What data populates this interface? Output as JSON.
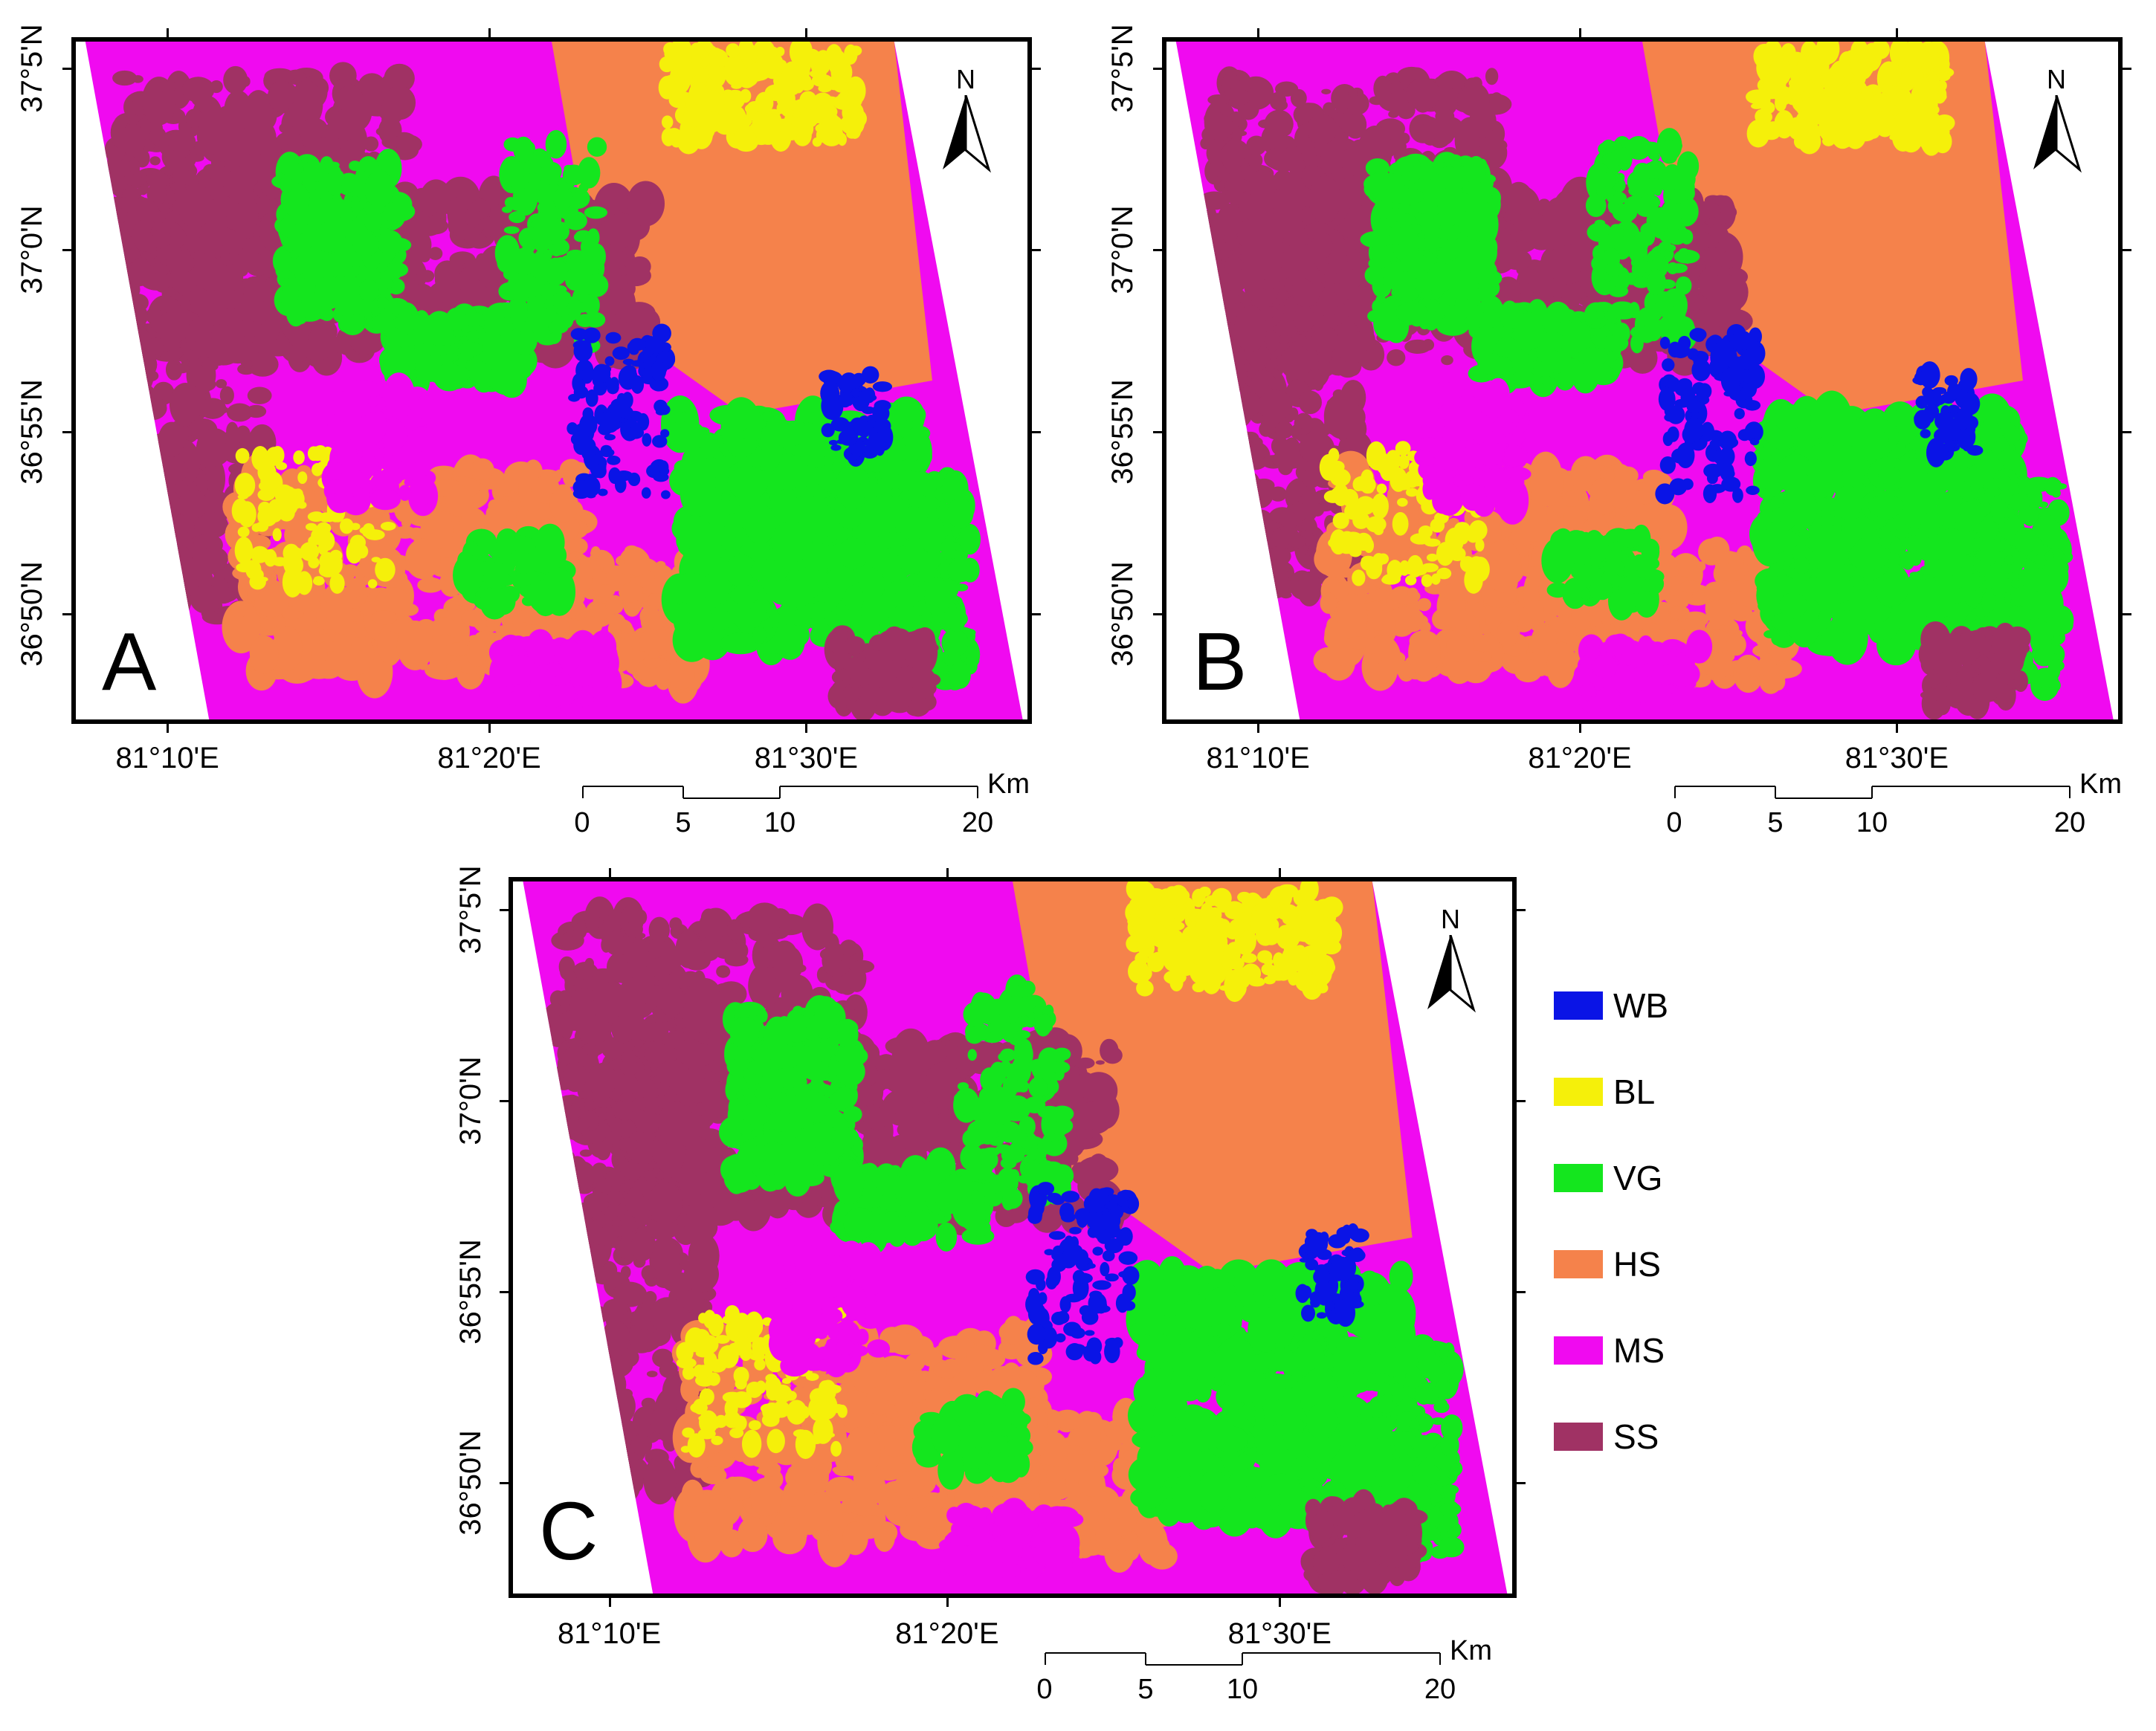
{
  "panels": [
    {
      "id": "A",
      "letter": "A"
    },
    {
      "id": "B",
      "letter": "B"
    },
    {
      "id": "C",
      "letter": "C"
    }
  ],
  "lat_labels": [
    "37°5'N",
    "37°0'N",
    "36°55'N",
    "36°50'N"
  ],
  "lon_labels": [
    "81°10'E",
    "81°20'E",
    "81°30'E"
  ],
  "north_arrow": {
    "label": "N"
  },
  "scalebar": {
    "ticks": [
      "0",
      "5",
      "10",
      "20"
    ],
    "unit": "Km"
  },
  "legend": [
    {
      "code": "WB",
      "color": "#0a14e6"
    },
    {
      "code": "BL",
      "color": "#f5f00a"
    },
    {
      "code": "VG",
      "color": "#14e61e"
    },
    {
      "code": "HS",
      "color": "#f5824b"
    },
    {
      "code": "MS",
      "color": "#f00af0"
    },
    {
      "code": "SS",
      "color": "#a03264"
    }
  ]
}
